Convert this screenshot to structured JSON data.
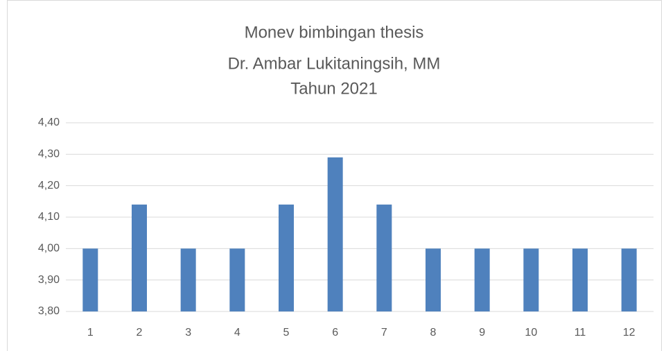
{
  "chart_data": {
    "type": "bar",
    "title": [
      "Monev bimbingan thesis",
      "Dr. Ambar Lukitaningsih, MM",
      "Tahun 2021"
    ],
    "categories": [
      "1",
      "2",
      "3",
      "4",
      "5",
      "6",
      "7",
      "8",
      "9",
      "10",
      "11",
      "12"
    ],
    "values": [
      4.0,
      4.14,
      4.0,
      4.0,
      4.14,
      4.29,
      4.14,
      4.0,
      4.0,
      4.0,
      4.0,
      4.0
    ],
    "color": "#4f81bd",
    "ylim": [
      3.8,
      4.4
    ],
    "yticks": [
      {
        "value": 3.8,
        "label": "3,80"
      },
      {
        "value": 3.9,
        "label": "3,90"
      },
      {
        "value": 4.0,
        "label": "4,00"
      },
      {
        "value": 4.1,
        "label": "4,10"
      },
      {
        "value": 4.2,
        "label": "4,20"
      },
      {
        "value": 4.3,
        "label": "4,30"
      },
      {
        "value": 4.4,
        "label": "4,40"
      }
    ],
    "grid": true
  }
}
